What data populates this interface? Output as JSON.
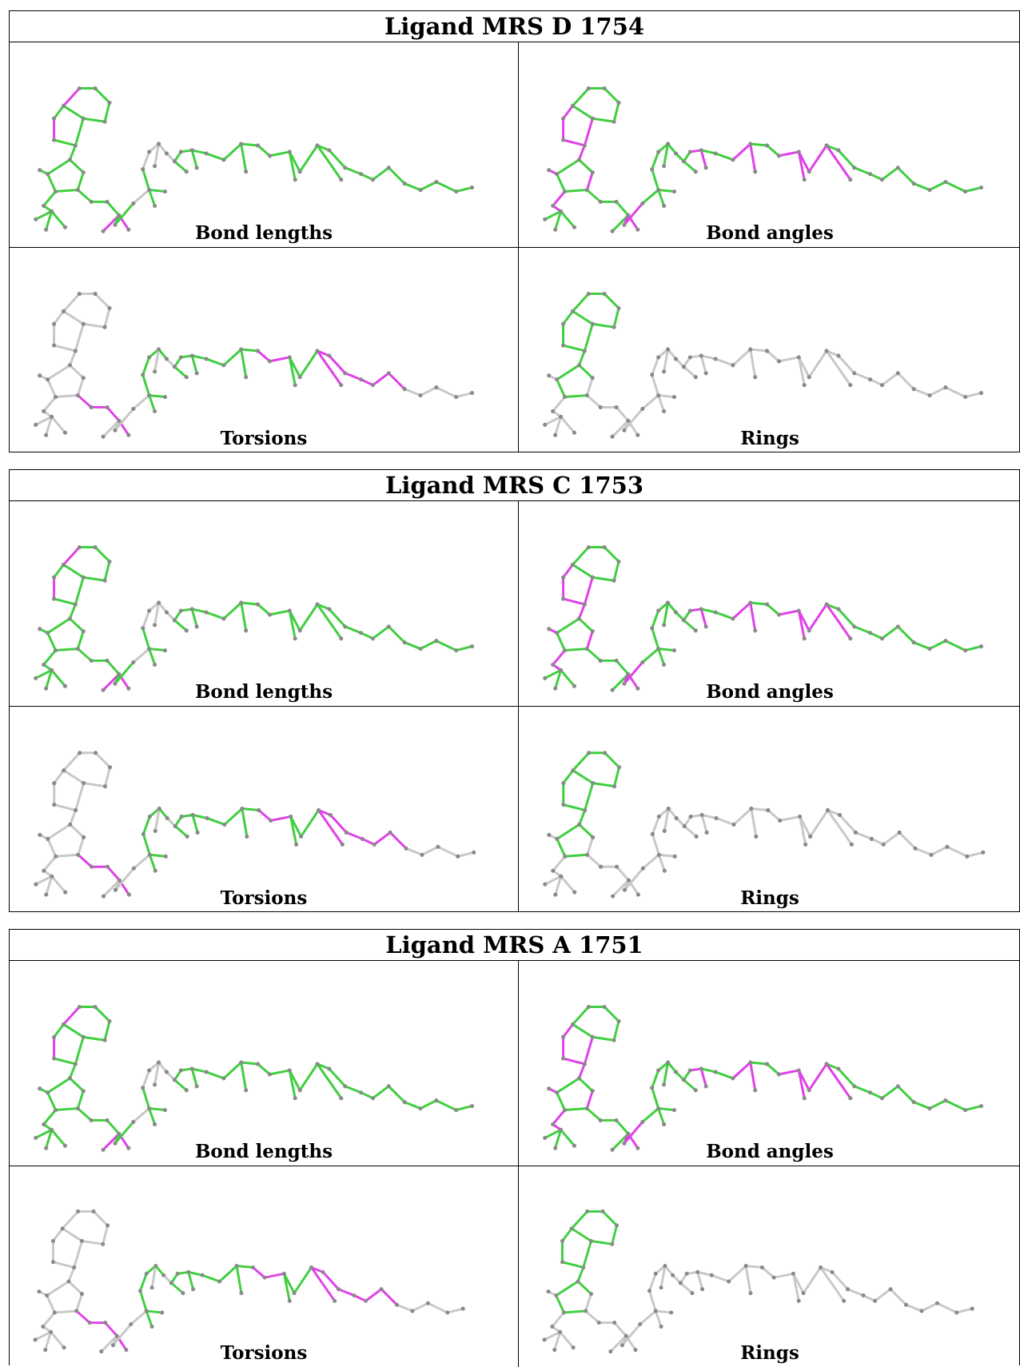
{
  "colors": {
    "ok": "#3fcf3f",
    "outlier": "#e040e8",
    "none": "#c8c8c8",
    "atom": "#8a8a8a",
    "border": "#000000"
  },
  "panel_labels": {
    "bond_lengths": "Bond lengths",
    "bond_angles": "Bond angles",
    "torsions": "Torsions",
    "rings": "Rings"
  },
  "ligands": [
    {
      "title": "Ligand MRS D 1754"
    },
    {
      "title": "Ligand MRS C 1753"
    },
    {
      "title": "Ligand MRS A 1751"
    }
  ]
}
